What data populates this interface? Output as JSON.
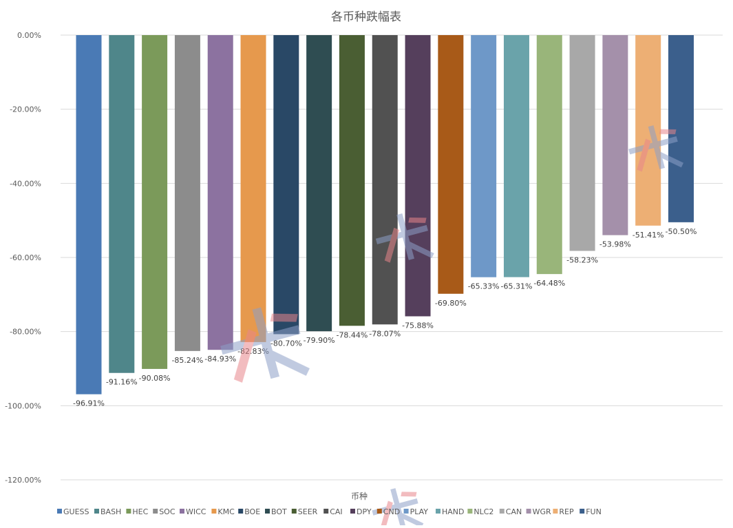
{
  "chart_data": {
    "type": "bar",
    "title": "各币种跌幅表",
    "xlabel": "币种",
    "ylabel": "",
    "ylim": [
      -120,
      0
    ],
    "y_ticks": [
      "0.00%",
      "-20.00%",
      "-40.00%",
      "-60.00%",
      "-80.00%",
      "-100.00%",
      "-120.00%"
    ],
    "y_tick_values": [
      0,
      -20,
      -40,
      -60,
      -80,
      -100,
      -120
    ],
    "grid": true,
    "legend_position": "bottom",
    "series": [
      {
        "name": "GUESS",
        "value": -96.91,
        "label": "-96.91%",
        "color": "#4a7ab5"
      },
      {
        "name": "BASH",
        "value": -91.16,
        "label": "-91.16%",
        "color": "#4f868a"
      },
      {
        "name": "HEC",
        "value": -90.08,
        "label": "-90.08%",
        "color": "#7b9a5a"
      },
      {
        "name": "SOC",
        "value": -85.24,
        "label": "-85.24%",
        "color": "#8c8c8c"
      },
      {
        "name": "WICC",
        "value": -84.93,
        "label": "-84.93%",
        "color": "#8c72a0"
      },
      {
        "name": "KMC",
        "value": -82.83,
        "label": "-82.83%",
        "color": "#e6994d"
      },
      {
        "name": "BOE",
        "value": -80.7,
        "label": "-80.70%",
        "color": "#294866"
      },
      {
        "name": "BOT",
        "value": -79.9,
        "label": "-79.90%",
        "color": "#2f4d52"
      },
      {
        "name": "SEER",
        "value": -78.44,
        "label": "-78.44%",
        "color": "#4a5e33"
      },
      {
        "name": "CAI",
        "value": -78.07,
        "label": "-78.07%",
        "color": "#515151"
      },
      {
        "name": "DPY",
        "value": -75.88,
        "label": "-75.88%",
        "color": "#553f5c"
      },
      {
        "name": "CND",
        "value": -69.8,
        "label": "-69.80%",
        "color": "#a85a18"
      },
      {
        "name": "PLAY",
        "value": -65.33,
        "label": "-65.33%",
        "color": "#6e98c8"
      },
      {
        "name": "HAND",
        "value": -65.31,
        "label": "-65.31%",
        "color": "#6aa3aa"
      },
      {
        "name": "NLC2",
        "value": -64.48,
        "label": "-64.48%",
        "color": "#99b57a"
      },
      {
        "name": "CAN",
        "value": -58.23,
        "label": "-58.23%",
        "color": "#a8a8a8"
      },
      {
        "name": "WGR",
        "value": -53.98,
        "label": "-53.98%",
        "color": "#a490aa"
      },
      {
        "name": "REP",
        "value": -51.41,
        "label": "-51.41%",
        "color": "#edaf74"
      },
      {
        "name": "FUN",
        "value": -50.5,
        "label": "-50.50%",
        "color": "#3b5f8c"
      }
    ]
  },
  "colors": {
    "grid": "#d9d9d9",
    "text": "#595959",
    "watermark_blue": "#8d9fc7",
    "watermark_red": "#e8868a"
  }
}
